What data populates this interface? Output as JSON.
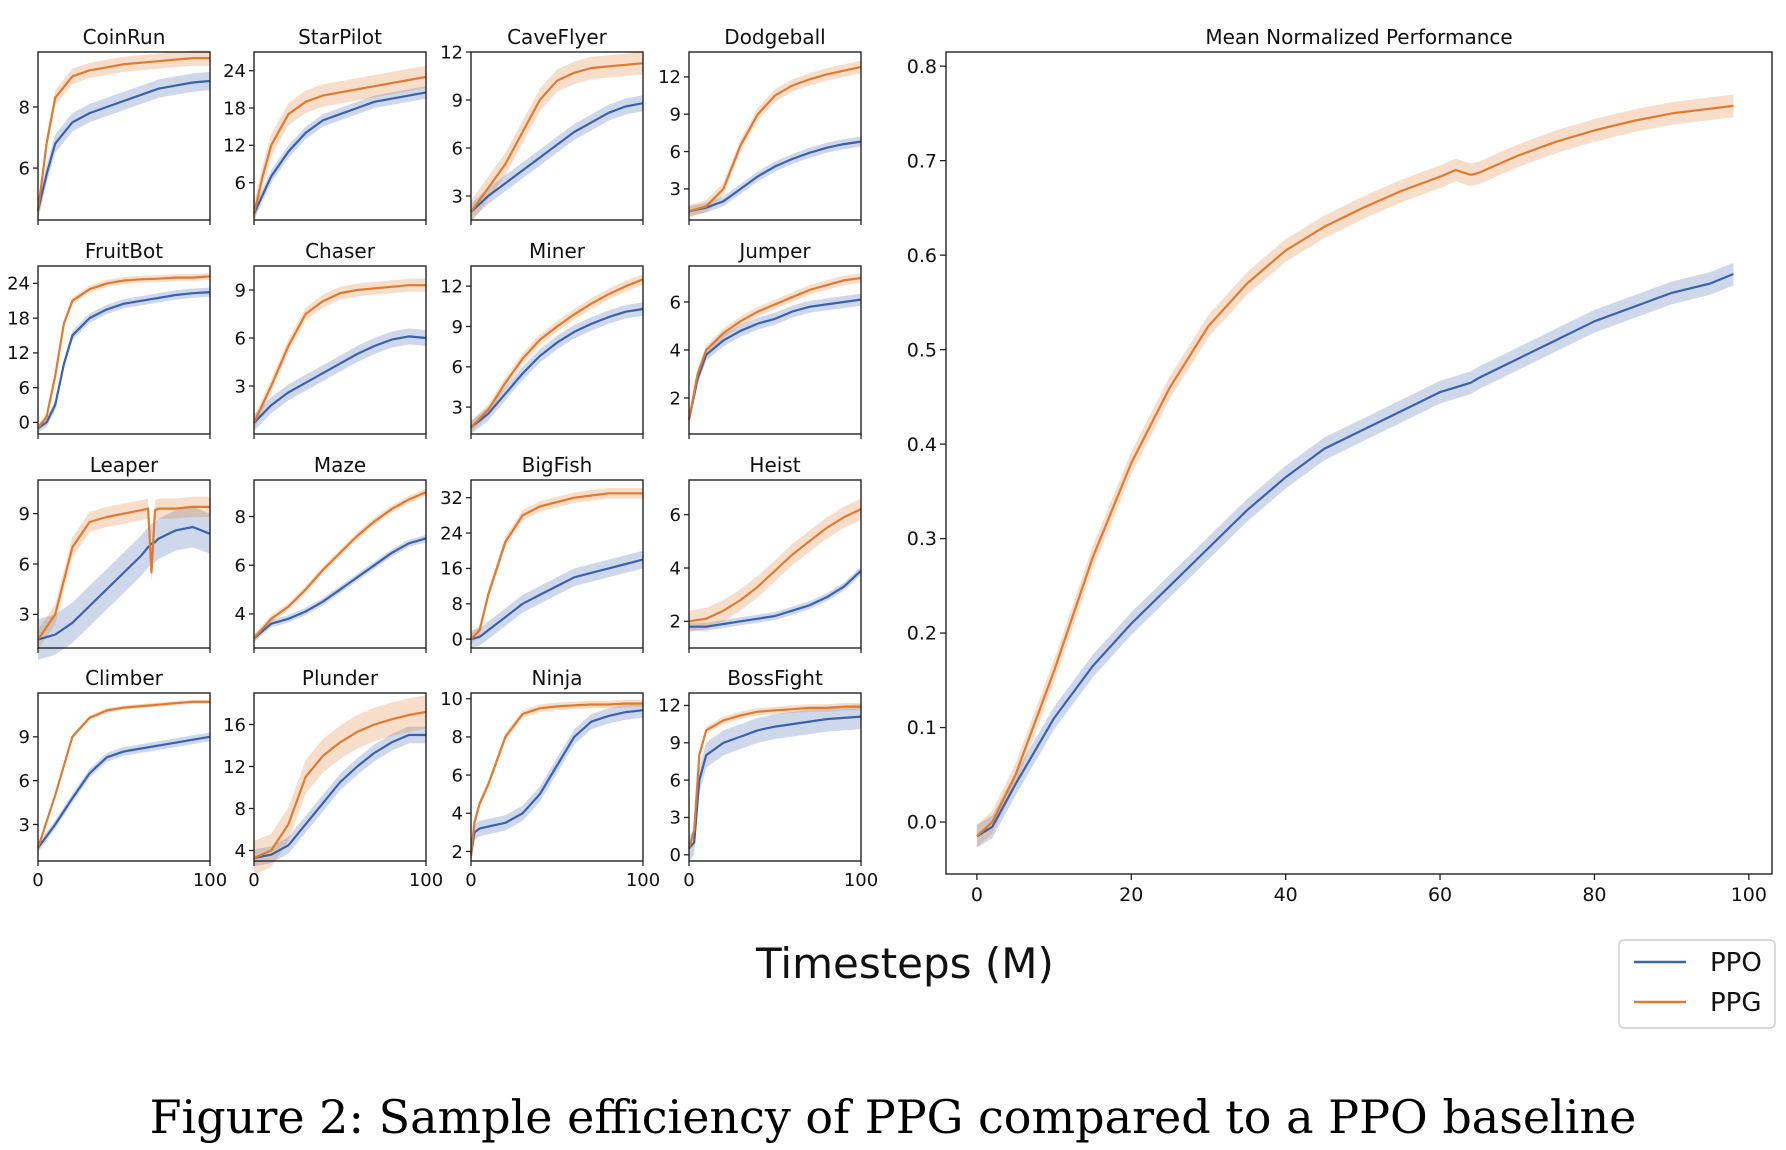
{
  "figure": {
    "xlabel": "Timesteps (M)",
    "caption": "Figure 2: Sample efficiency of PPG compared to a PPO baseline",
    "legend": {
      "placement": "bottom-right",
      "entries": [
        "PPO",
        "PPG"
      ]
    },
    "colors": {
      "PPO": "#3a62ad",
      "PPG": "#df7b30"
    }
  },
  "chart_data": [
    {
      "type": "line",
      "title": "CoinRun",
      "xlim": [
        0,
        100
      ],
      "ylim": [
        4.3,
        9.8
      ],
      "xticks": [],
      "yticks": [
        6,
        8
      ],
      "x": [
        0,
        5,
        10,
        20,
        30,
        40,
        50,
        60,
        70,
        80,
        90,
        100
      ],
      "series": [
        {
          "name": "PPO",
          "values": [
            4.6,
            5.8,
            6.8,
            7.5,
            7.8,
            8.0,
            8.2,
            8.4,
            8.6,
            8.7,
            8.8,
            8.85
          ],
          "band": 0.3
        },
        {
          "name": "PPG",
          "values": [
            4.6,
            6.8,
            8.3,
            9.0,
            9.2,
            9.3,
            9.4,
            9.45,
            9.5,
            9.55,
            9.6,
            9.6
          ],
          "band": 0.25
        }
      ]
    },
    {
      "type": "line",
      "title": "StarPilot",
      "xlim": [
        0,
        100
      ],
      "ylim": [
        0,
        27
      ],
      "xticks": [],
      "yticks": [
        6,
        12,
        18,
        24
      ],
      "x": [
        0,
        5,
        10,
        20,
        30,
        40,
        50,
        60,
        70,
        80,
        90,
        100
      ],
      "series": [
        {
          "name": "PPO",
          "values": [
            1,
            4,
            7,
            11,
            14,
            16,
            17,
            18,
            19,
            19.5,
            20,
            20.5
          ],
          "band": 1.0
        },
        {
          "name": "PPG",
          "values": [
            1,
            7,
            12,
            17,
            19,
            20,
            20.5,
            21,
            21.5,
            22,
            22.5,
            23
          ],
          "band": 1.8
        }
      ]
    },
    {
      "type": "line",
      "title": "CaveFlyer",
      "xlim": [
        0,
        100
      ],
      "ylim": [
        1.5,
        12
      ],
      "xticks": [],
      "yticks": [
        3,
        6,
        9,
        12
      ],
      "x": [
        0,
        10,
        20,
        30,
        40,
        50,
        60,
        70,
        80,
        90,
        100
      ],
      "series": [
        {
          "name": "PPO",
          "values": [
            2,
            3,
            3.8,
            4.6,
            5.4,
            6.2,
            7.0,
            7.6,
            8.2,
            8.6,
            8.8
          ],
          "band": 0.5
        },
        {
          "name": "PPG",
          "values": [
            2,
            3.5,
            5,
            7,
            9,
            10.2,
            10.7,
            11,
            11.1,
            11.2,
            11.3
          ],
          "band": 0.7
        }
      ]
    },
    {
      "type": "line",
      "title": "Dodgeball",
      "xlim": [
        0,
        100
      ],
      "ylim": [
        0.5,
        14
      ],
      "xticks": [],
      "yticks": [
        3,
        6,
        9,
        12
      ],
      "x": [
        0,
        10,
        20,
        30,
        40,
        50,
        60,
        70,
        80,
        90,
        100
      ],
      "series": [
        {
          "name": "PPO",
          "values": [
            1.2,
            1.5,
            2,
            3,
            4,
            4.8,
            5.4,
            5.9,
            6.3,
            6.6,
            6.8
          ],
          "band": 0.4
        },
        {
          "name": "PPG",
          "values": [
            1.2,
            1.6,
            3,
            6.5,
            9,
            10.5,
            11.3,
            11.8,
            12.2,
            12.5,
            12.8
          ],
          "band": 0.5
        }
      ]
    },
    {
      "type": "line",
      "title": "FruitBot",
      "xlim": [
        0,
        100
      ],
      "ylim": [
        -2,
        27
      ],
      "xticks": [],
      "yticks": [
        0,
        6,
        12,
        18,
        24
      ],
      "x": [
        0,
        5,
        10,
        15,
        20,
        30,
        40,
        50,
        60,
        70,
        80,
        90,
        100
      ],
      "series": [
        {
          "name": "PPO",
          "values": [
            -1,
            0,
            3,
            10,
            15,
            18,
            19.5,
            20.5,
            21,
            21.5,
            22,
            22.3,
            22.5
          ],
          "band": 0.8
        },
        {
          "name": "PPG",
          "values": [
            -1,
            1,
            8,
            17,
            21,
            23,
            24,
            24.5,
            24.7,
            24.8,
            25,
            25,
            25.2
          ],
          "band": 0.6
        }
      ]
    },
    {
      "type": "line",
      "title": "Chaser",
      "xlim": [
        0,
        100
      ],
      "ylim": [
        0,
        10.5
      ],
      "xticks": [],
      "yticks": [
        3,
        6,
        9
      ],
      "x": [
        0,
        10,
        20,
        30,
        40,
        50,
        60,
        70,
        80,
        90,
        100
      ],
      "series": [
        {
          "name": "PPO",
          "values": [
            0.7,
            1.8,
            2.6,
            3.2,
            3.8,
            4.4,
            5.0,
            5.5,
            5.9,
            6.1,
            6.0
          ],
          "band": 0.5
        },
        {
          "name": "PPG",
          "values": [
            0.7,
            3,
            5.5,
            7.5,
            8.3,
            8.8,
            9.0,
            9.1,
            9.2,
            9.3,
            9.3
          ],
          "band": 0.4
        }
      ]
    },
    {
      "type": "line",
      "title": "Miner",
      "xlim": [
        0,
        100
      ],
      "ylim": [
        1,
        13.5
      ],
      "xticks": [],
      "yticks": [
        3,
        6,
        9,
        12
      ],
      "x": [
        0,
        10,
        20,
        30,
        40,
        50,
        60,
        70,
        80,
        90,
        100
      ],
      "series": [
        {
          "name": "PPO",
          "values": [
            1.5,
            2.5,
            4,
            5.5,
            6.8,
            7.8,
            8.6,
            9.2,
            9.7,
            10.1,
            10.3
          ],
          "band": 0.5
        },
        {
          "name": "PPG",
          "values": [
            1.5,
            2.8,
            4.8,
            6.6,
            8,
            9,
            9.9,
            10.7,
            11.4,
            12,
            12.5
          ],
          "band": 0.4
        }
      ]
    },
    {
      "type": "line",
      "title": "Jumper",
      "xlim": [
        0,
        100
      ],
      "ylim": [
        0.5,
        7.5
      ],
      "xticks": [],
      "yticks": [
        2,
        4,
        6
      ],
      "x": [
        0,
        5,
        10,
        20,
        30,
        40,
        50,
        60,
        70,
        80,
        90,
        100
      ],
      "series": [
        {
          "name": "PPO",
          "values": [
            1.1,
            2.8,
            3.8,
            4.4,
            4.8,
            5.1,
            5.3,
            5.6,
            5.8,
            5.9,
            6.0,
            6.1
          ],
          "band": 0.25
        },
        {
          "name": "PPG",
          "values": [
            1.1,
            3.0,
            4.0,
            4.7,
            5.2,
            5.6,
            5.9,
            6.2,
            6.5,
            6.7,
            6.9,
            7.0
          ],
          "band": 0.2
        }
      ]
    },
    {
      "type": "line",
      "title": "Leaper",
      "xlim": [
        0,
        100
      ],
      "ylim": [
        1,
        11
      ],
      "xticks": [],
      "yticks": [
        3,
        6,
        9
      ],
      "x": [
        0,
        10,
        20,
        30,
        40,
        50,
        60,
        64,
        66,
        68,
        70,
        80,
        90,
        100
      ],
      "series": [
        {
          "name": "PPO",
          "values": [
            1.5,
            1.8,
            2.5,
            3.5,
            4.5,
            5.5,
            6.5,
            7.0,
            7.2,
            7.3,
            7.5,
            8.0,
            8.2,
            7.8
          ],
          "band": 1.2
        },
        {
          "name": "PPG",
          "values": [
            1.5,
            3,
            7,
            8.5,
            8.8,
            9,
            9.2,
            9.3,
            5.5,
            9.2,
            9.3,
            9.3,
            9.4,
            9.4
          ],
          "band": 0.6
        }
      ]
    },
    {
      "type": "line",
      "title": "Maze",
      "xlim": [
        0,
        100
      ],
      "ylim": [
        2.6,
        9.5
      ],
      "xticks": [],
      "yticks": [
        4,
        6,
        8
      ],
      "x": [
        0,
        10,
        20,
        30,
        40,
        50,
        60,
        70,
        80,
        90,
        100
      ],
      "series": [
        {
          "name": "PPO",
          "values": [
            3.0,
            3.6,
            3.8,
            4.1,
            4.5,
            5.0,
            5.5,
            6.0,
            6.5,
            6.9,
            7.1
          ],
          "band": 0.15
        },
        {
          "name": "PPG",
          "values": [
            3.0,
            3.8,
            4.3,
            5.0,
            5.8,
            6.5,
            7.2,
            7.8,
            8.3,
            8.7,
            9.0
          ],
          "band": 0.15
        }
      ]
    },
    {
      "type": "line",
      "title": "BigFish",
      "xlim": [
        0,
        100
      ],
      "ylim": [
        -2,
        36
      ],
      "xticks": [],
      "yticks": [
        0,
        8,
        16,
        24,
        32
      ],
      "x": [
        0,
        5,
        10,
        20,
        30,
        40,
        50,
        60,
        70,
        80,
        90,
        100
      ],
      "series": [
        {
          "name": "PPO",
          "values": [
            0,
            0.5,
            2,
            5,
            8,
            10,
            12,
            14,
            15,
            16,
            17,
            18
          ],
          "band": 2.0
        },
        {
          "name": "PPG",
          "values": [
            0,
            2,
            10,
            22,
            28,
            30,
            31,
            32,
            32.5,
            33,
            33,
            33
          ],
          "band": 1.2
        }
      ]
    },
    {
      "type": "line",
      "title": "Heist",
      "xlim": [
        0,
        100
      ],
      "ylim": [
        1,
        7.3
      ],
      "xticks": [],
      "yticks": [
        2,
        4,
        6
      ],
      "x": [
        0,
        10,
        20,
        30,
        40,
        50,
        60,
        70,
        80,
        90,
        100
      ],
      "series": [
        {
          "name": "PPO",
          "values": [
            1.8,
            1.8,
            1.9,
            2.0,
            2.1,
            2.2,
            2.4,
            2.6,
            2.9,
            3.3,
            3.9
          ],
          "band": 0.15
        },
        {
          "name": "PPG",
          "values": [
            2.0,
            2.1,
            2.4,
            2.8,
            3.3,
            3.9,
            4.5,
            5.0,
            5.5,
            5.9,
            6.2
          ],
          "band": 0.4
        }
      ]
    },
    {
      "type": "line",
      "title": "Climber",
      "xlim": [
        0,
        100
      ],
      "ylim": [
        0.5,
        12
      ],
      "xticks": [
        0,
        100
      ],
      "yticks": [
        3,
        6,
        9
      ],
      "x": [
        0,
        10,
        20,
        30,
        40,
        50,
        60,
        70,
        80,
        90,
        100
      ],
      "series": [
        {
          "name": "PPO",
          "values": [
            1.4,
            3,
            4.8,
            6.5,
            7.6,
            8.0,
            8.2,
            8.4,
            8.6,
            8.8,
            9.0
          ],
          "band": 0.3
        },
        {
          "name": "PPG",
          "values": [
            1.4,
            5,
            9,
            10.3,
            10.8,
            11.0,
            11.1,
            11.2,
            11.3,
            11.4,
            11.4
          ],
          "band": 0.15
        }
      ]
    },
    {
      "type": "line",
      "title": "Plunder",
      "xlim": [
        0,
        100
      ],
      "ylim": [
        3,
        19
      ],
      "xticks": [
        0,
        100
      ],
      "yticks": [
        4,
        8,
        12,
        16
      ],
      "x": [
        0,
        10,
        20,
        30,
        40,
        50,
        60,
        70,
        80,
        90,
        100
      ],
      "series": [
        {
          "name": "PPO",
          "values": [
            3.3,
            3.6,
            4.5,
            6.5,
            8.5,
            10.5,
            12,
            13.3,
            14.3,
            15.0,
            15.0
          ],
          "band": 0.8
        },
        {
          "name": "PPG",
          "values": [
            3.3,
            4.0,
            6.5,
            11,
            13,
            14.3,
            15.3,
            16,
            16.5,
            16.9,
            17.2
          ],
          "band": 1.6
        }
      ]
    },
    {
      "type": "line",
      "title": "Ninja",
      "xlim": [
        0,
        100
      ],
      "ylim": [
        1.5,
        10.3
      ],
      "xticks": [
        0,
        100
      ],
      "yticks": [
        2,
        4,
        6,
        8,
        10
      ],
      "x": [
        0,
        2,
        5,
        10,
        20,
        30,
        40,
        50,
        60,
        70,
        80,
        90,
        100
      ],
      "series": [
        {
          "name": "PPO",
          "values": [
            1.8,
            3.0,
            3.2,
            3.3,
            3.5,
            4.0,
            5.0,
            6.5,
            8.0,
            8.8,
            9.1,
            9.3,
            9.4
          ],
          "band": 0.4
        },
        {
          "name": "PPG",
          "values": [
            1.8,
            3.5,
            4.5,
            5.5,
            8.0,
            9.2,
            9.5,
            9.6,
            9.65,
            9.7,
            9.7,
            9.75,
            9.75
          ],
          "band": 0.2
        }
      ]
    },
    {
      "type": "line",
      "title": "BossFight",
      "xlim": [
        0,
        100
      ],
      "ylim": [
        -0.5,
        13
      ],
      "xticks": [
        0,
        100
      ],
      "yticks": [
        0,
        3,
        6,
        9,
        12
      ],
      "x": [
        0,
        3,
        6,
        10,
        20,
        30,
        40,
        50,
        60,
        70,
        80,
        90,
        100
      ],
      "series": [
        {
          "name": "PPO",
          "values": [
            0.5,
            1,
            6,
            8,
            9,
            9.5,
            10,
            10.3,
            10.5,
            10.7,
            10.9,
            11,
            11.1
          ],
          "band": 1.0
        },
        {
          "name": "PPG",
          "values": [
            0.5,
            2,
            8,
            10,
            10.8,
            11.2,
            11.5,
            11.6,
            11.7,
            11.8,
            11.8,
            11.9,
            11.9
          ],
          "band": 0.3
        }
      ]
    },
    {
      "type": "line",
      "title": "Mean Normalized Performance",
      "xlim": [
        -4,
        103
      ],
      "ylim": [
        -0.055,
        0.815
      ],
      "xticks": [
        0,
        20,
        40,
        60,
        80,
        100
      ],
      "yticks": [
        0.0,
        0.1,
        0.2,
        0.3,
        0.4,
        0.5,
        0.6,
        0.7,
        0.8
      ],
      "x": [
        0,
        2,
        5,
        10,
        15,
        20,
        25,
        30,
        35,
        40,
        45,
        50,
        55,
        60,
        62,
        64,
        65,
        70,
        75,
        80,
        85,
        90,
        95,
        98
      ],
      "series": [
        {
          "name": "PPO",
          "values": [
            -0.015,
            -0.005,
            0.04,
            0.11,
            0.165,
            0.21,
            0.25,
            0.29,
            0.33,
            0.365,
            0.395,
            0.415,
            0.435,
            0.455,
            0.46,
            0.465,
            0.47,
            0.49,
            0.51,
            0.53,
            0.545,
            0.56,
            0.57,
            0.58
          ],
          "band": 0.012
        },
        {
          "name": "PPG",
          "values": [
            -0.015,
            0.0,
            0.05,
            0.16,
            0.28,
            0.38,
            0.46,
            0.525,
            0.57,
            0.605,
            0.63,
            0.65,
            0.668,
            0.683,
            0.69,
            0.685,
            0.687,
            0.705,
            0.72,
            0.732,
            0.742,
            0.75,
            0.755,
            0.758
          ],
          "band": 0.012
        }
      ]
    }
  ]
}
